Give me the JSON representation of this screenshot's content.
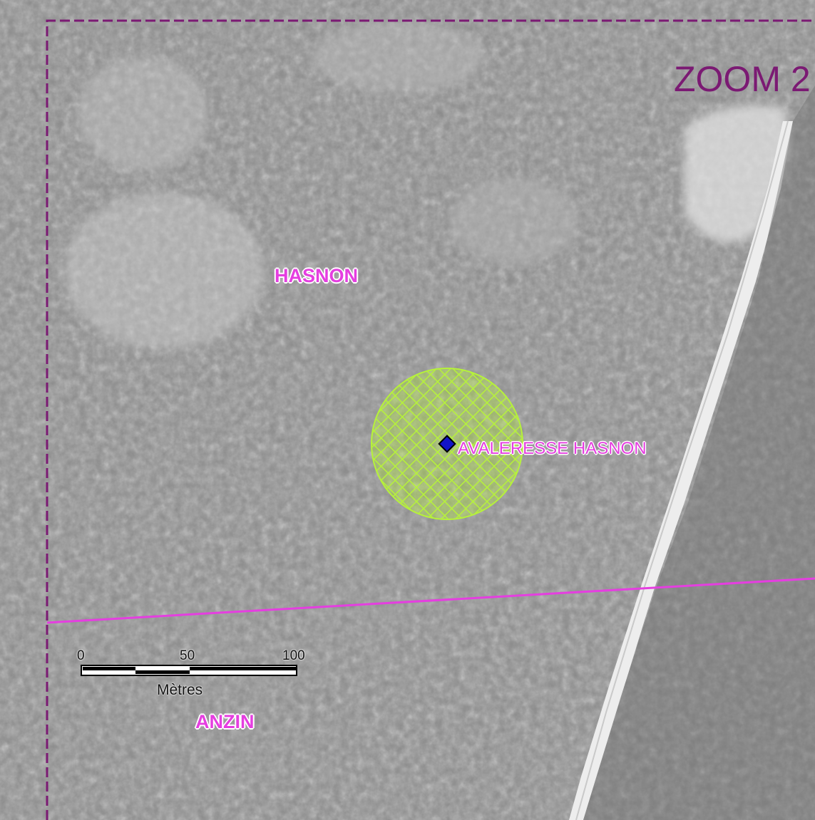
{
  "map": {
    "zoom_label": "ZOOM 2",
    "communes": [
      "HASNON",
      "ANZIN"
    ],
    "site": {
      "label": "AVALERESSE HASNON",
      "marker": "diamond-point",
      "marker_color": "#1414c8",
      "buffer_color": "#b6f23a"
    },
    "boundary_color": "#e53ee0",
    "frame_color": "#7b1a73",
    "scale_bar": {
      "ticks": [
        "0",
        "50",
        "100"
      ],
      "unit": "Mètres"
    }
  }
}
